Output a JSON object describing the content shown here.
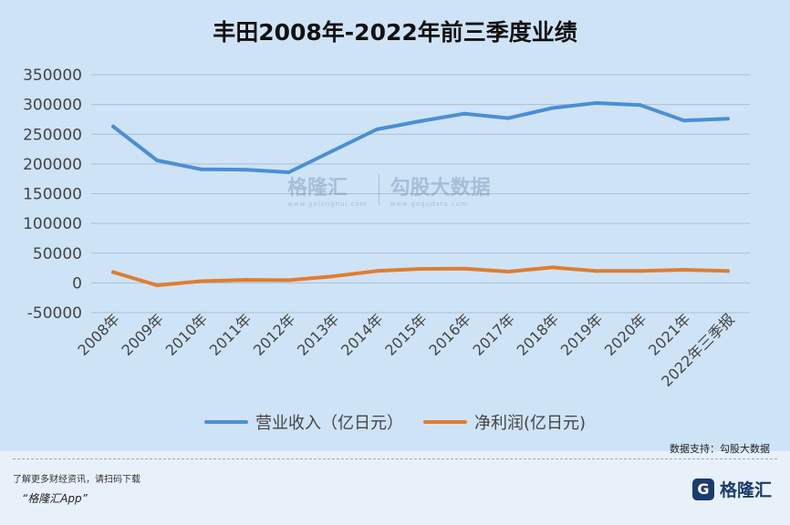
{
  "title": "丰田2008年-2022年前三季度业绩",
  "chart_data": {
    "type": "line",
    "title": "丰田2008年-2022年前三季度业绩",
    "categories": [
      "2008年",
      "2009年",
      "2010年",
      "2011年",
      "2012年",
      "2013年",
      "2014年",
      "2015年",
      "2016年",
      "2017年",
      "2018年",
      "2019年",
      "2020年",
      "2021年",
      "2022年三季报"
    ],
    "ylim": [
      -50000,
      350000
    ],
    "yticks": [
      -50000,
      0,
      50000,
      100000,
      150000,
      200000,
      250000,
      300000,
      350000
    ],
    "grid": true,
    "legend_position": "bottom",
    "series": [
      {
        "name": "营业收入（亿日元）",
        "color": "#4a8fd4",
        "values": [
          263000,
          206000,
          191000,
          190500,
          186000,
          222000,
          258000,
          272000,
          284500,
          277000,
          294000,
          302500,
          299000,
          273000,
          276000
        ]
      },
      {
        "name": "净利润(亿日元)",
        "color": "#e07d2f",
        "values": [
          18000,
          -4000,
          2800,
          5000,
          4500,
          11000,
          20000,
          23500,
          24000,
          19000,
          26000,
          20000,
          20000,
          22000,
          20000
        ]
      }
    ]
  },
  "watermark": {
    "brand": "格隆汇",
    "brand_sub": "www.gelonghui.com",
    "data": "勾股大数据",
    "data_sub": "www.gogudata.com"
  },
  "source_label": "数据支持：勾股大数据",
  "footer": {
    "note": "了解更多财经资讯，请扫码下载",
    "app": "“格隆汇App”",
    "logo_mark": "G",
    "logo_text": "格隆汇"
  }
}
